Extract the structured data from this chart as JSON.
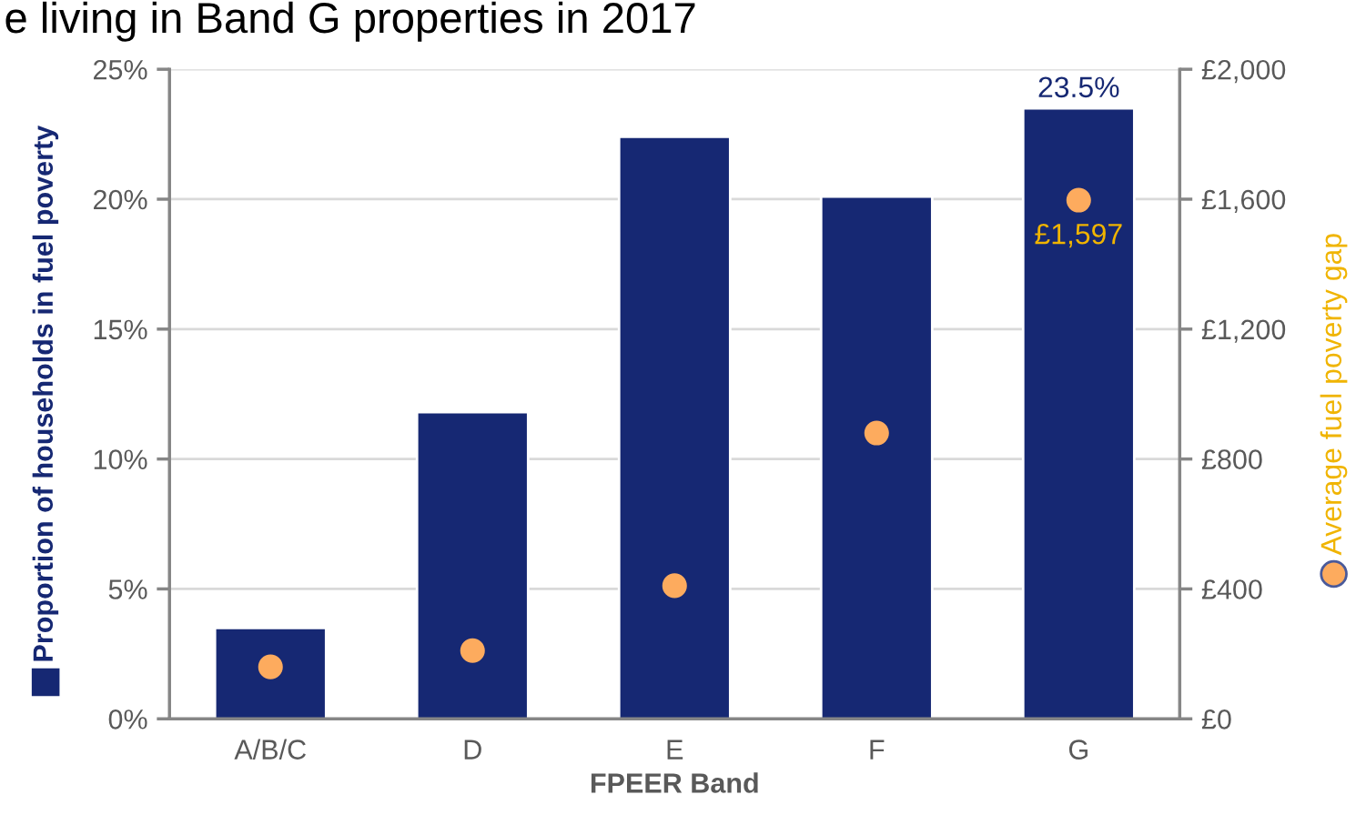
{
  "chart_data": {
    "type": "bar",
    "title": "e living in Band G properties in 2017",
    "xlabel": "FPEER Band",
    "ylabel": "Proportion of households in fuel poverty",
    "y2label": "Average fuel poverty gap",
    "categories": [
      "A/B/C",
      "D",
      "E",
      "F",
      "G"
    ],
    "series": [
      {
        "color": "#162873",
        "values": [
          3.5,
          11.8,
          22.4,
          20.1,
          23.5
        ],
        "value_labels": [
          null,
          null,
          null,
          null,
          "23.5%"
        ]
      },
      {
        "type": "scatter",
        "axis": "y2",
        "marker": "circle",
        "color": "#fdab5e",
        "values": [
          160,
          210,
          410,
          880,
          1597
        ],
        "value_labels": [
          null,
          null,
          null,
          null,
          "£1,597"
        ]
      }
    ],
    "ylim": [
      0,
      25
    ],
    "yticks": [
      {
        "value": 0,
        "label": "0%"
      },
      {
        "value": 5,
        "label": "5%"
      },
      {
        "value": 10,
        "label": "10%"
      },
      {
        "value": 15,
        "label": "15%"
      },
      {
        "value": 20,
        "label": "20%"
      },
      {
        "value": 25,
        "label": "25%"
      }
    ],
    "y2lim": [
      0,
      2000
    ],
    "y2ticks": [
      {
        "value": 0,
        "label": "£0"
      },
      {
        "value": 400,
        "label": "£400"
      },
      {
        "value": 800,
        "label": "£800"
      },
      {
        "value": 1200,
        "label": "£1,200"
      },
      {
        "value": 1600,
        "label": "£1,600"
      },
      {
        "value": 2000,
        "label": "£2,000"
      }
    ],
    "grid": "y"
  }
}
